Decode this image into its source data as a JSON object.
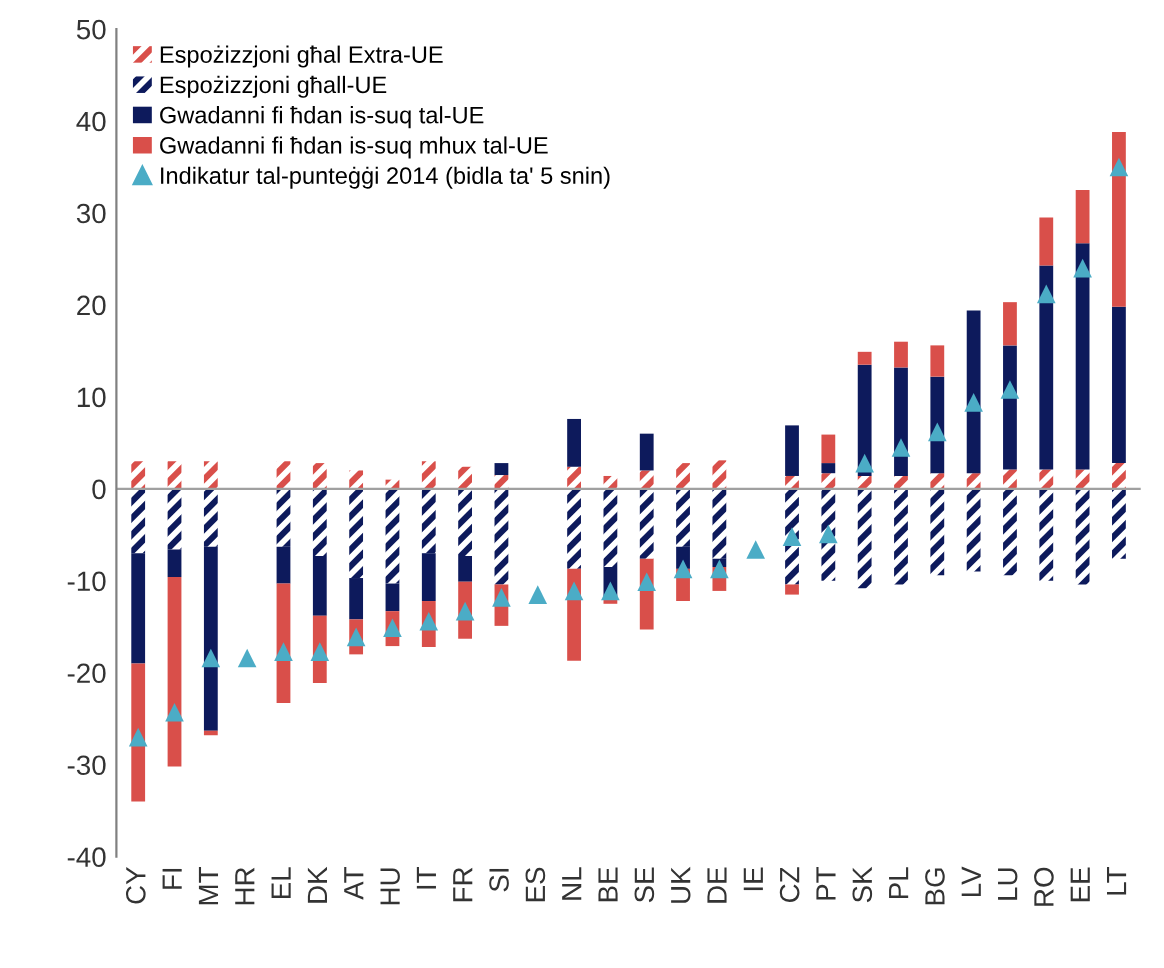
{
  "chart_data": {
    "type": "bar",
    "stacked": true,
    "categories": [
      "CY",
      "FI",
      "MT",
      "HR",
      "EL",
      "DK",
      "AT",
      "HU",
      "IT",
      "FR",
      "SI",
      "ES",
      "NL",
      "BE",
      "SE",
      "UK",
      "DE",
      "IE",
      "CZ",
      "PT",
      "SK",
      "PL",
      "BG",
      "LV",
      "LU",
      "RO",
      "EE",
      "LT"
    ],
    "series": [
      {
        "name": "Espożizzjoni għal Extra-UE",
        "color": "#d94f4a",
        "line_style": "dashed",
        "values": [
          3,
          3,
          3,
          null,
          3,
          2.8,
          2,
          1,
          3,
          2.4,
          1.5,
          null,
          2.4,
          1.4,
          2,
          2.8,
          3.1,
          null,
          1.4,
          1.7,
          1.4,
          1.4,
          1.7,
          1.7,
          2.1,
          2.1,
          2.1,
          2.8
        ]
      },
      {
        "name": "Espożizzjoni għall-UE",
        "color": "#0d1a5c",
        "line_style": "dashed",
        "values": [
          -7,
          -6.6,
          -6.3,
          null,
          -6.3,
          -7.3,
          -9.7,
          -10.3,
          -7,
          -7.3,
          -10.4,
          null,
          -8.7,
          -8.5,
          -7.6,
          -6.3,
          -7.6,
          null,
          -10.4,
          -10,
          -10.8,
          -10.4,
          -9.4,
          -9,
          -9.4,
          -10,
          -10.4,
          -7.6
        ]
      },
      {
        "name": "Gwadanni fi ħdan is-suq tal-UE",
        "color": "#0d1a5c",
        "values": [
          -12,
          -3,
          -20,
          null,
          -4,
          -6.5,
          -4.5,
          -3,
          -5.2,
          -2.8,
          1.3,
          null,
          5.2,
          -3.2,
          4,
          -2.4,
          -0.9,
          null,
          5.5,
          1.1,
          12.1,
          11.8,
          10.5,
          17.7,
          13.5,
          22.2,
          24.6,
          17
        ]
      },
      {
        "name": "Gwadanni fi ħdan is-suq mhux tal-UE",
        "color": "#d94f4a",
        "values": [
          -15,
          -20.6,
          -0.5,
          null,
          -13,
          -7.3,
          -3.8,
          -3.8,
          -5,
          -6.2,
          -4.5,
          null,
          -10,
          -0.8,
          -7.7,
          -3.5,
          -2.6,
          null,
          -1.1,
          3.1,
          1.4,
          2.8,
          3.4,
          null,
          4.7,
          5.2,
          5.8,
          19
        ]
      },
      {
        "name": "Indikatur tal-punteġġi 2014 (bidla ta' 5 snin)",
        "type": "scatter",
        "marker": "triangle",
        "color": "#4bacc6",
        "values": [
          -27,
          -24.3,
          -18.4,
          -18.4,
          -17.7,
          -17.7,
          -16.1,
          -15.1,
          -14.4,
          -13.3,
          -11.8,
          -11.5,
          -11.1,
          -11.1,
          -10.1,
          -8.7,
          -8.7,
          -6.6,
          -5.2,
          -4.9,
          2.8,
          4.5,
          6.2,
          9.4,
          10.8,
          21.2,
          24,
          35
        ]
      }
    ],
    "ylim": [
      -40,
      50
    ],
    "yticks": [
      -40,
      -30,
      -20,
      -10,
      0,
      10,
      20,
      30,
      40,
      50
    ],
    "ref_lines": [
      {
        "axis": "y",
        "value": 0,
        "color": "#a0a0a0"
      }
    ],
    "grid": false,
    "legend": "top left"
  }
}
